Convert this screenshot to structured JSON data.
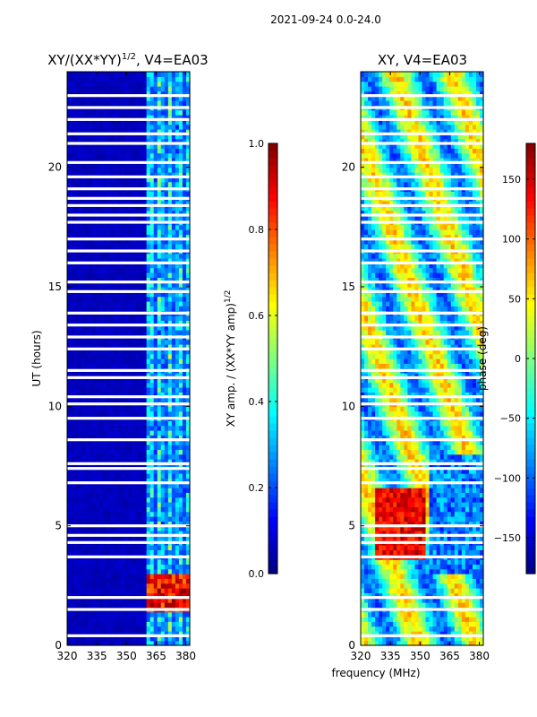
{
  "figure_title": "2021-09-24 0.0-24.0",
  "shared_xlabel": "frequency (MHz)",
  "colormap": [
    "#00007f",
    "#0000ff",
    "#007fff",
    "#00ffff",
    "#7fff7f",
    "#ffff00",
    "#ff7f00",
    "#ff0000",
    "#7f0000"
  ],
  "chart_data": [
    {
      "type": "heatmap",
      "title_main": "XY/(XX*YY)",
      "title_sup": "1/2",
      "title_rest": ", V4=EA03",
      "xlabel": "",
      "ylabel": "UT (hours)",
      "xlim": [
        320,
        382
      ],
      "ylim": [
        0,
        24
      ],
      "xticks": [
        320,
        335,
        350,
        365,
        380
      ],
      "yticks": [
        0,
        5,
        10,
        15,
        20
      ],
      "colorbar": {
        "label_main": "XY amp. / (XX*YY amp)",
        "label_sup": "1/2",
        "range": [
          0.0,
          1.0
        ],
        "ticks": [
          "0.0",
          "0.2",
          "0.4",
          "0.6",
          "0.8",
          "1.0"
        ],
        "tick_values": [
          0.0,
          0.2,
          0.4,
          0.6,
          0.8,
          1.0
        ]
      },
      "flag_gaps_hours": [
        0.4,
        1.5,
        2.0,
        3.7,
        4.3,
        4.6,
        5.0,
        6.8,
        7.4,
        7.6,
        8.6,
        9.5,
        10.1,
        10.4,
        11.2,
        11.5,
        12.4,
        12.9,
        13.4,
        13.9,
        14.8,
        15.2,
        16.0,
        16.5,
        17.0,
        17.7,
        18.0,
        18.4,
        18.7,
        19.1,
        19.6,
        20.2,
        21.0,
        21.4,
        22.0,
        22.5,
        23.0
      ],
      "features": [
        {
          "region": "320-360 MHz",
          "value": 0.05,
          "description": "low amplitude background"
        },
        {
          "region": "361-381 MHz",
          "value": 0.35,
          "description": "vertical streaks of elevated amplitude"
        },
        {
          "region": "362-381 MHz, 1.5-3.0 h",
          "value": 0.9,
          "description": "high amplitude patch"
        }
      ]
    },
    {
      "type": "heatmap",
      "title_main": "XY, V4=EA03",
      "xlabel": "frequency (MHz)",
      "ylabel": "",
      "xlim": [
        320,
        382
      ],
      "ylim": [
        0,
        24
      ],
      "xticks": [
        320,
        335,
        350,
        365,
        380
      ],
      "yticks": [
        0,
        5,
        10,
        15,
        20
      ],
      "colorbar": {
        "label_main": "phase (deg)",
        "range": [
          -180,
          180
        ],
        "ticks": [
          "−150",
          "−100",
          "−50",
          "0",
          "50",
          "100",
          "150"
        ],
        "tick_values": [
          -150,
          -100,
          -50,
          0,
          50,
          100,
          150
        ]
      },
      "flag_gaps_hours": [
        0.4,
        1.5,
        2.0,
        3.7,
        4.3,
        4.6,
        5.0,
        6.8,
        7.4,
        7.6,
        8.6,
        9.5,
        10.1,
        10.4,
        11.2,
        11.5,
        12.4,
        12.9,
        13.4,
        13.9,
        14.8,
        15.2,
        16.0,
        16.5,
        17.0,
        17.7,
        18.0,
        18.4,
        18.7,
        19.1,
        19.6,
        20.2,
        21.0,
        21.4,
        22.0,
        22.5,
        23.0
      ],
      "features": [
        {
          "region": "328-352 MHz, 3.5-6.5 h",
          "value": 140,
          "description": "large positive phase region"
        },
        {
          "region": "355-382 MHz, 3-8 h",
          "value": -120,
          "description": "negative phase bands"
        },
        {
          "region": "320-382 MHz, 8-24 h",
          "value": -20,
          "description": "mixed phase with banded structure"
        }
      ]
    }
  ]
}
